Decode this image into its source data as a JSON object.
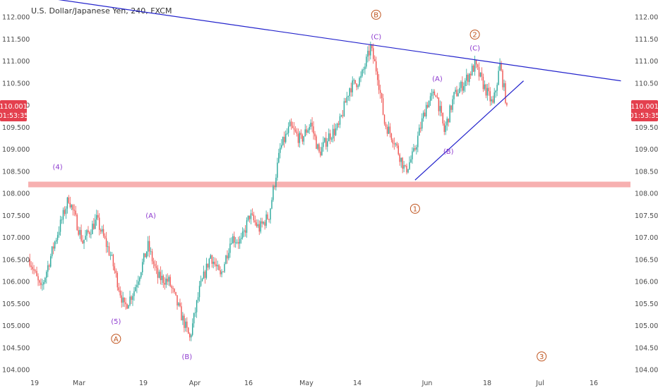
{
  "header": {
    "title": "U.S. Dollar/Japanese Yen, 240, FXCM"
  },
  "colors": {
    "up": "#26a69a",
    "down": "#ef5350",
    "trendline": "#2323cc",
    "support_zone": "#f7b0b0",
    "wave_orange": "#c05621",
    "wave_purple": "#8e3bcf",
    "price_tag": "#e4404e"
  },
  "price_tag": {
    "price": "110.001",
    "countdown": "01:53:35"
  },
  "chart_data": {
    "type": "candlestick",
    "title": "U.S. Dollar/Japanese Yen, 240, FXCM",
    "y_ticks": [
      "112.000",
      "111.500",
      "111.000",
      "110.500",
      "110.000",
      "109.500",
      "109.000",
      "108.500",
      "108.000",
      "107.500",
      "107.000",
      "106.500",
      "106.000",
      "105.500",
      "105.000",
      "104.500",
      "104.000"
    ],
    "x_ticks": [
      "19",
      "Mar",
      "19",
      "Apr",
      "16",
      "May",
      "14",
      "Jun",
      "18",
      "Jul",
      "16"
    ],
    "ylim": [
      104.0,
      112.0
    ],
    "last_price": 110.001,
    "support_level": 108.2,
    "price_path": [
      [
        0,
        106.5
      ],
      [
        8,
        105.8
      ],
      [
        18,
        106.9
      ],
      [
        28,
        107.9
      ],
      [
        38,
        106.9
      ],
      [
        48,
        107.4
      ],
      [
        58,
        106.6
      ],
      [
        68,
        105.4
      ],
      [
        75,
        105.8
      ],
      [
        85,
        106.8
      ],
      [
        92,
        106.1
      ],
      [
        100,
        106.0
      ],
      [
        107,
        105.4
      ],
      [
        115,
        104.7
      ],
      [
        122,
        105.8
      ],
      [
        130,
        106.6
      ],
      [
        137,
        106.1
      ],
      [
        145,
        107.0
      ],
      [
        152,
        106.9
      ],
      [
        158,
        107.5
      ],
      [
        165,
        107.2
      ],
      [
        172,
        107.5
      ],
      [
        180,
        109.0
      ],
      [
        187,
        109.5
      ],
      [
        195,
        109.2
      ],
      [
        202,
        109.6
      ],
      [
        208,
        108.9
      ],
      [
        215,
        109.3
      ],
      [
        222,
        109.5
      ],
      [
        230,
        110.4
      ],
      [
        238,
        110.6
      ],
      [
        245,
        111.3
      ],
      [
        250,
        110.7
      ],
      [
        255,
        109.6
      ],
      [
        262,
        109.2
      ],
      [
        270,
        108.5
      ],
      [
        276,
        108.9
      ],
      [
        285,
        110.0
      ],
      [
        292,
        110.3
      ],
      [
        298,
        109.4
      ],
      [
        305,
        110.2
      ],
      [
        312,
        110.5
      ],
      [
        320,
        110.9
      ],
      [
        327,
        110.4
      ],
      [
        333,
        110.0
      ],
      [
        338,
        110.9
      ],
      [
        343,
        110.0
      ]
    ],
    "trendlines": [
      {
        "from": [
          -3,
          112.5
        ],
        "to": [
          425,
          110.55
        ]
      },
      {
        "from": [
          277,
          108.3
        ],
        "to": [
          355,
          110.55
        ]
      }
    ],
    "wave_labels": [
      {
        "text": "(4)",
        "x": 20,
        "y": 108.6,
        "color": "purple",
        "circled": false
      },
      {
        "text": "(5)",
        "x": 62,
        "y": 105.1,
        "color": "purple",
        "circled": false
      },
      {
        "text": "A",
        "x": 62,
        "y": 104.7,
        "color": "orange",
        "circled": true
      },
      {
        "text": "(A)",
        "x": 87,
        "y": 107.5,
        "color": "purple",
        "circled": false
      },
      {
        "text": "(B)",
        "x": 113,
        "y": 104.3,
        "color": "purple",
        "circled": false
      },
      {
        "text": "B",
        "x": 249,
        "y": 112.05,
        "color": "orange",
        "circled": true
      },
      {
        "text": "(C)",
        "x": 249,
        "y": 111.55,
        "color": "purple",
        "circled": false
      },
      {
        "text": "1",
        "x": 277,
        "y": 107.65,
        "color": "orange",
        "circled": true
      },
      {
        "text": "(A)",
        "x": 293,
        "y": 110.6,
        "color": "purple",
        "circled": false
      },
      {
        "text": "(B)",
        "x": 301,
        "y": 108.95,
        "color": "purple",
        "circled": false
      },
      {
        "text": "2",
        "x": 320,
        "y": 111.6,
        "color": "orange",
        "circled": true
      },
      {
        "text": "(C)",
        "x": 320,
        "y": 111.3,
        "color": "purple",
        "circled": false
      },
      {
        "text": "3",
        "x": 368,
        "y": 104.3,
        "color": "orange",
        "circled": true
      }
    ],
    "grid": false
  }
}
